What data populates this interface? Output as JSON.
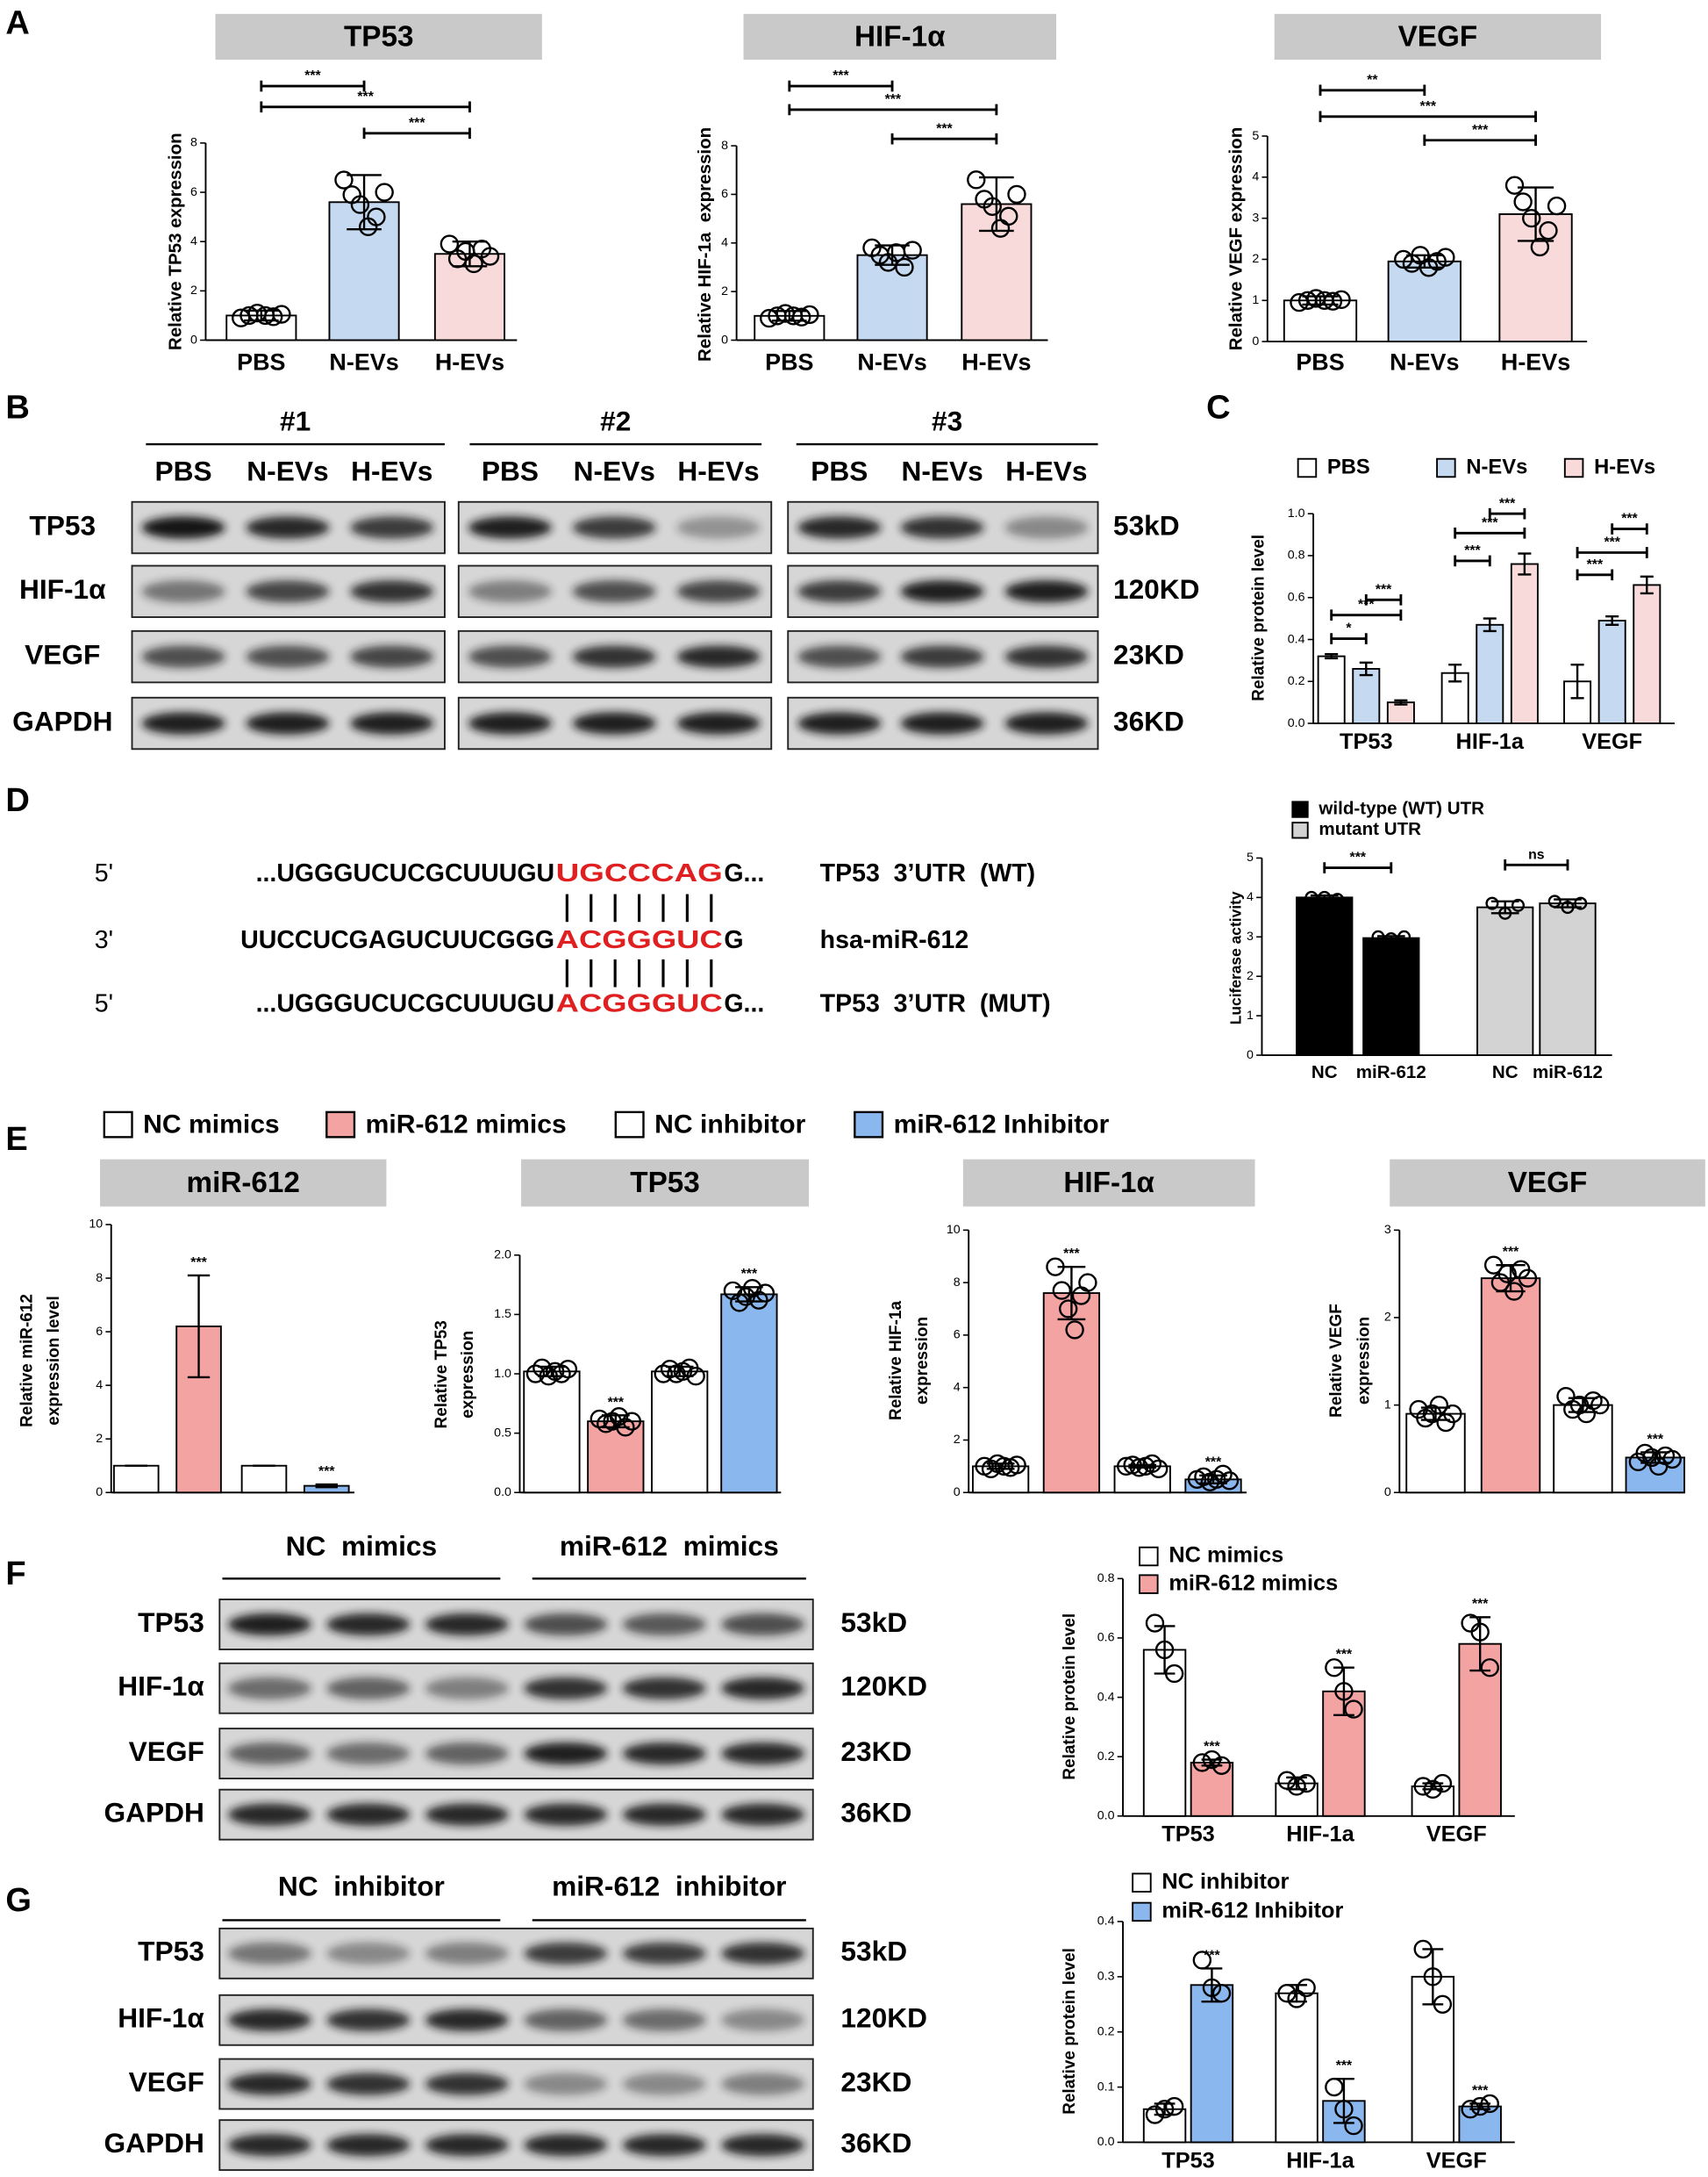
{
  "panel_labels": [
    "A",
    "B",
    "C",
    "D",
    "E",
    "F",
    "G"
  ],
  "chart_data": [
    {
      "type": "bar",
      "title": "TP53",
      "y_label": "Relative TP53 expression",
      "categories": [
        "PBS",
        "N-EVs",
        "H-EVs"
      ],
      "values": [
        1.0,
        5.6,
        3.5
      ],
      "errors": [
        0.2,
        1.1,
        0.5
      ],
      "points": [
        [
          0.9,
          1.0,
          1.1,
          1.0,
          0.95,
          1.05
        ],
        [
          6.5,
          5.9,
          5.5,
          4.6,
          5.0,
          6.0
        ],
        [
          3.9,
          3.3,
          3.6,
          3.1,
          3.7,
          3.4
        ]
      ],
      "colors": [
        "#ffffff",
        "#c5d9f1",
        "#f9dada"
      ],
      "ylim": [
        0,
        8
      ],
      "yticks": [
        0,
        2,
        4,
        6,
        8
      ],
      "significance": [
        {
          "pair": [
            0,
            1
          ],
          "label": "***"
        },
        {
          "pair": [
            0,
            2
          ],
          "label": "***"
        },
        {
          "pair": [
            1,
            2
          ],
          "label": "***"
        }
      ]
    },
    {
      "type": "bar",
      "title": "HIF-1α",
      "y_label": "Relative HIF-1a  expression",
      "categories": [
        "PBS",
        "N-EVs",
        "H-EVs"
      ],
      "values": [
        1.0,
        3.5,
        5.6
      ],
      "errors": [
        0.2,
        0.4,
        1.1
      ],
      "points": [
        [
          0.9,
          1.0,
          1.1,
          1.0,
          0.95,
          1.05
        ],
        [
          3.8,
          3.5,
          3.2,
          3.6,
          3.0,
          3.7
        ],
        [
          6.6,
          5.8,
          5.5,
          4.6,
          5.1,
          6.0
        ]
      ],
      "colors": [
        "#ffffff",
        "#c5d9f1",
        "#f9dada"
      ],
      "ylim": [
        0,
        8
      ],
      "yticks": [
        0,
        2,
        4,
        6,
        8
      ],
      "significance": [
        {
          "pair": [
            0,
            1
          ],
          "label": "***"
        },
        {
          "pair": [
            0,
            2
          ],
          "label": "***"
        },
        {
          "pair": [
            1,
            2
          ],
          "label": "***"
        }
      ]
    },
    {
      "type": "bar",
      "title": "VEGF",
      "y_label": "Relative VEGF expression",
      "categories": [
        "PBS",
        "N-EVs",
        "H-EVs"
      ],
      "values": [
        1.0,
        1.95,
        3.1
      ],
      "errors": [
        0.1,
        0.15,
        0.65
      ],
      "points": [
        [
          0.95,
          1.0,
          1.05,
          1.0,
          0.98,
          1.02
        ],
        [
          2.0,
          1.9,
          2.1,
          1.8,
          1.95,
          2.05
        ],
        [
          3.8,
          3.4,
          3.0,
          2.3,
          2.7,
          3.3
        ]
      ],
      "colors": [
        "#ffffff",
        "#c5d9f1",
        "#f9dada"
      ],
      "ylim": [
        0,
        5
      ],
      "yticks": [
        0,
        1,
        2,
        3,
        4,
        5
      ],
      "significance": [
        {
          "pair": [
            0,
            1
          ],
          "label": "**"
        },
        {
          "pair": [
            0,
            2
          ],
          "label": "***"
        },
        {
          "pair": [
            1,
            2
          ],
          "label": "***"
        }
      ]
    },
    {
      "type": "bar",
      "y_label": "Relative protein level",
      "categories": [
        "TP53",
        "HIF-1a",
        "VEGF"
      ],
      "series": [
        {
          "name": "PBS",
          "color": "#ffffff",
          "values": [
            0.32,
            0.24,
            0.2
          ],
          "errors": [
            0.01,
            0.04,
            0.08
          ]
        },
        {
          "name": "N-EVs",
          "color": "#c5d9f1",
          "values": [
            0.26,
            0.47,
            0.49
          ],
          "errors": [
            0.03,
            0.03,
            0.02
          ]
        },
        {
          "name": "H-EVs",
          "color": "#f9dada",
          "values": [
            0.1,
            0.76,
            0.66
          ],
          "errors": [
            0.01,
            0.05,
            0.04
          ]
        }
      ],
      "ylim": [
        0,
        1.0
      ],
      "yticks": [
        {
          "value": 0,
          "label": "0.0"
        },
        0.2,
        0.4,
        0.6,
        0.8,
        {
          "value": 1.0,
          "label": "1.0"
        }
      ],
      "significance": [
        {
          "category": 0,
          "pair": [
            0,
            1
          ],
          "label": "*"
        },
        {
          "category": 0,
          "pair": [
            0,
            2
          ],
          "label": "***"
        },
        {
          "category": 0,
          "pair": [
            1,
            2
          ],
          "label": "***"
        },
        {
          "category": 1,
          "pair": [
            0,
            1
          ],
          "label": "***"
        },
        {
          "category": 1,
          "pair": [
            0,
            2
          ],
          "label": "***"
        },
        {
          "category": 1,
          "pair": [
            1,
            2
          ],
          "label": "***"
        },
        {
          "category": 2,
          "pair": [
            0,
            1
          ],
          "label": "***"
        },
        {
          "category": 2,
          "pair": [
            0,
            2
          ],
          "label": "***"
        },
        {
          "category": 2,
          "pair": [
            1,
            2
          ],
          "label": "***"
        }
      ]
    },
    {
      "type": "bar",
      "y_label": "Luciferase activity",
      "categories": [
        "NC",
        "miR-612",
        "NC",
        "miR-612"
      ],
      "series": [
        {
          "name": "wild-type (WT) UTR",
          "color": "#000000",
          "values": [
            4.0,
            2.97,
            null,
            null
          ],
          "errors": [
            0.05,
            0.05,
            null,
            null
          ],
          "points": [
            [
              4.0,
              4.0,
              3.95
            ],
            [
              3.0,
              2.95,
              3.0
            ],
            null,
            null
          ]
        },
        {
          "name": "mutant UTR",
          "color": "#d3d3d3",
          "values": [
            null,
            null,
            3.75,
            3.85
          ],
          "errors": [
            null,
            null,
            0.15,
            0.1
          ],
          "points": [
            null,
            null,
            [
              3.85,
              3.6,
              3.8
            ],
            [
              3.9,
              3.75,
              3.85
            ]
          ]
        }
      ],
      "ylim": [
        0,
        5
      ],
      "yticks": [
        0,
        1,
        2,
        3,
        4,
        5
      ],
      "significance": [
        {
          "pair": [
            0,
            1
          ],
          "label": "***"
        },
        {
          "pair": [
            2,
            3
          ],
          "label": "ns"
        }
      ]
    },
    {
      "type": "bar",
      "title": "miR-612",
      "y_label": [
        "Relative miR-612",
        "expression level"
      ],
      "categories": [
        null,
        null,
        null,
        null
      ],
      "values": [
        1,
        6.2,
        1,
        0.25
      ],
      "errors": [
        0,
        1.9,
        0,
        0.05
      ],
      "annotations": [
        null,
        "***",
        null,
        "***"
      ],
      "ylim": [
        0,
        10
      ],
      "yticks": [
        0,
        2,
        4,
        6,
        8,
        10
      ]
    },
    {
      "type": "bar",
      "title": "TP53",
      "y_label": [
        "Relative TP53",
        "expression"
      ],
      "categories": [
        null,
        null,
        null,
        null
      ],
      "values": [
        1.02,
        0.6,
        1.02,
        1.67
      ],
      "errors": [
        0.04,
        0.05,
        0.04,
        0.06
      ],
      "annotations": [
        null,
        "***",
        null,
        "***"
      ],
      "points": [
        [
          1.0,
          1.05,
          0.98,
          1.02,
          1.0,
          1.04
        ],
        [
          0.62,
          0.58,
          0.6,
          0.64,
          0.55,
          0.6
        ],
        [
          1.0,
          1.04,
          1.0,
          1.02,
          1.05,
          0.98
        ],
        [
          1.7,
          1.6,
          1.65,
          1.72,
          1.62,
          1.68
        ]
      ],
      "ylim": [
        0,
        2.0
      ],
      "yticks": [
        {
          "value": 0,
          "label": "0.0"
        },
        0.5,
        {
          "value": 1.0,
          "label": "1.0"
        },
        1.5,
        {
          "value": 2.0,
          "label": "2.0"
        }
      ]
    },
    {
      "type": "bar",
      "title": "HIF-1α",
      "y_label": [
        "Relative HIF-1a",
        "expression"
      ],
      "categories": [
        null,
        null,
        null,
        null
      ],
      "values": [
        1.0,
        7.6,
        1.0,
        0.5
      ],
      "errors": [
        0.1,
        1.0,
        0.05,
        0.15
      ],
      "annotations": [
        null,
        "***",
        null,
        "***"
      ],
      "points": [
        [
          1.0,
          0.9,
          1.1,
          1.0,
          0.95,
          1.05
        ],
        [
          8.6,
          7.7,
          7.0,
          6.2,
          7.5,
          8.0
        ],
        [
          1.0,
          1.05,
          0.95,
          1.0,
          1.1,
          0.9
        ],
        [
          0.5,
          0.6,
          0.4,
          0.5,
          0.7,
          0.45
        ]
      ],
      "ylim": [
        0,
        10
      ],
      "yticks": [
        0,
        2,
        4,
        6,
        8,
        10
      ]
    },
    {
      "type": "bar",
      "title": "VEGF",
      "y_label": [
        "Relative VEGF",
        "expression"
      ],
      "categories": [
        null,
        null,
        null,
        null
      ],
      "values": [
        0.9,
        2.45,
        1.0,
        0.4
      ],
      "errors": [
        0.07,
        0.15,
        0.08,
        0.06
      ],
      "annotations": [
        null,
        "***",
        null,
        "***"
      ],
      "points": [
        [
          0.95,
          0.85,
          0.9,
          1.0,
          0.8,
          0.9
        ],
        [
          2.6,
          2.4,
          2.5,
          2.3,
          2.55,
          2.45
        ],
        [
          1.1,
          0.95,
          1.0,
          0.9,
          1.05,
          1.0
        ],
        [
          0.35,
          0.45,
          0.4,
          0.3,
          0.42,
          0.38
        ]
      ],
      "ylim": [
        0,
        3
      ],
      "yticks": [
        0,
        1,
        2,
        3
      ]
    },
    {
      "type": "bar",
      "y_label": "Relative protein level",
      "categories": [
        "TP53",
        "HIF-1a",
        "VEGF"
      ],
      "series": [
        {
          "name": "NC mimics",
          "color": "#ffffff",
          "values": [
            0.56,
            0.11,
            0.1
          ],
          "errors": [
            0.08,
            0.02,
            0.01
          ],
          "points": [
            [
              0.65,
              0.56,
              0.48
            ],
            [
              0.12,
              0.1,
              0.11
            ],
            [
              0.1,
              0.09,
              0.11
            ]
          ]
        },
        {
          "name": "miR-612 mimics",
          "color": "#f4a3a3",
          "values": [
            0.18,
            0.42,
            0.58
          ],
          "errors": [
            0.01,
            0.08,
            0.09
          ],
          "points": [
            [
              0.18,
              0.19,
              0.17
            ],
            [
              0.5,
              0.42,
              0.36
            ],
            [
              0.65,
              0.62,
              0.5
            ]
          ],
          "annotations": [
            "***",
            "***",
            "***"
          ]
        }
      ],
      "ylim": [
        0,
        0.8
      ],
      "yticks": [
        {
          "value": 0,
          "label": "0.0"
        },
        0.2,
        0.4,
        0.6,
        0.8
      ]
    },
    {
      "type": "bar",
      "y_label": "Relative protein level",
      "categories": [
        "TP53",
        "HIF-1a",
        "VEGF"
      ],
      "series": [
        {
          "name": "NC inhibitor",
          "color": "#ffffff",
          "values": [
            0.06,
            0.27,
            0.3
          ],
          "errors": [
            0.01,
            0.015,
            0.05
          ],
          "points": [
            [
              0.05,
              0.06,
              0.065
            ],
            [
              0.27,
              0.26,
              0.28
            ],
            [
              0.35,
              0.3,
              0.25
            ]
          ]
        },
        {
          "name": "miR-612 Inhibitor",
          "color": "#8ab8ee",
          "values": [
            0.285,
            0.075,
            0.065
          ],
          "errors": [
            0.03,
            0.04,
            0.005
          ],
          "points": [
            [
              0.33,
              0.28,
              0.27
            ],
            [
              0.1,
              0.06,
              0.03
            ],
            [
              0.06,
              0.065,
              0.07
            ]
          ],
          "annotations": [
            "***",
            "***",
            "***"
          ]
        }
      ],
      "ylim": [
        0,
        0.4
      ],
      "yticks": [
        {
          "value": 0,
          "label": "0.0"
        },
        0.1,
        0.2,
        0.3,
        0.4
      ]
    }
  ],
  "legend_E": {
    "items": [
      {
        "name": "NC mimics",
        "color": "#ffffff"
      },
      {
        "name": "miR-612 mimics",
        "color": "#f4a3a3"
      },
      {
        "name": "NC inhibitor",
        "color": "#ffffff"
      },
      {
        "name": "miR-612 Inhibitor",
        "color": "#8ab8ee"
      }
    ]
  },
  "blot_B": {
    "groups": [
      {
        "label": "#1",
        "lanes": [
          "PBS",
          "N-EVs",
          "H-EVs"
        ]
      },
      {
        "label": "#2",
        "lanes": [
          "PBS",
          "N-EVs",
          "H-EVs"
        ]
      },
      {
        "label": "#3",
        "lanes": [
          "PBS",
          "N-EVs",
          "H-EVs"
        ]
      }
    ],
    "rows": [
      "TP53",
      "HIF-1α",
      "VEGF",
      "GAPDH"
    ],
    "sizes": [
      "53kD",
      "120KD",
      "23KD",
      "36KD"
    ]
  },
  "blot_F": {
    "groups": [
      {
        "label": "NC  mimics"
      },
      {
        "label": "miR-612  mimics"
      }
    ],
    "rows": [
      "TP53",
      "HIF-1α",
      "VEGF",
      "GAPDH"
    ],
    "sizes": [
      "53kD",
      "120KD",
      "23KD",
      "36KD"
    ]
  },
  "blot_G": {
    "groups": [
      {
        "label": "NC  inhibitor"
      },
      {
        "label": "miR-612  inhibitor"
      }
    ],
    "rows": [
      "TP53",
      "HIF-1α",
      "VEGF",
      "GAPDH"
    ],
    "sizes": [
      "53kD",
      "120KD",
      "23KD",
      "36KD"
    ]
  },
  "sequence_D": {
    "lines": [
      {
        "prime": "5'",
        "seq": "...UGGGUCUCGCUUUGU",
        "site": "UGCCCAG",
        "tail": "G...",
        "label": "TP53  3’UTR  (WT)"
      },
      {
        "prime": "3'",
        "seq": "UUCCUCGAGUCUUCGGG",
        "site": "ACGGGUC",
        "tail": "G",
        "label": "hsa-miR-612"
      },
      {
        "prime": "5'",
        "seq": "...UGGGUCUCGCUUUGU",
        "site": "ACGGGUC",
        "tail": "G...",
        "label": "TP53  3’UTR  (MUT)"
      }
    ]
  }
}
